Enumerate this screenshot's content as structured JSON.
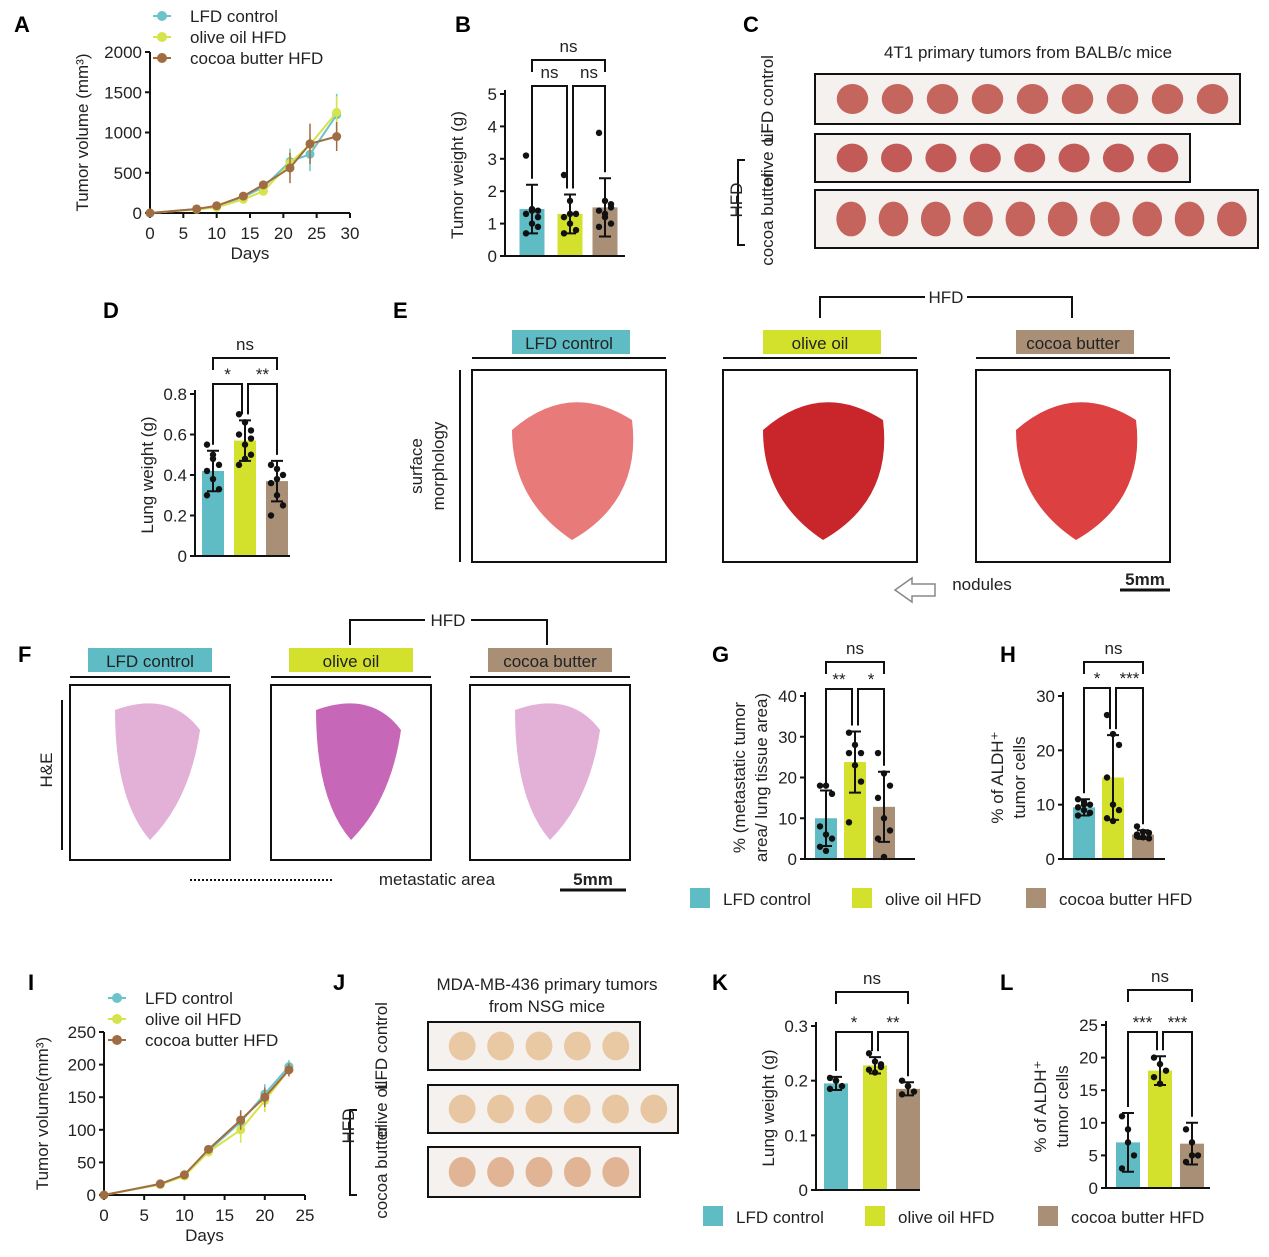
{
  "panel_labels": [
    "A",
    "B",
    "C",
    "D",
    "E",
    "F",
    "G",
    "H",
    "I",
    "J",
    "K",
    "L"
  ],
  "groups": [
    "LFD control",
    "olive oil HFD",
    "cocoa butter HFD"
  ],
  "colors": {
    "LFD control": "#5fbcc4",
    "olive oil HFD": "#d3e12c",
    "cocoa butter HFD": "#a98f76",
    "line_lfd": "#6cc3c9",
    "line_olive": "#d6e34a",
    "line_cocoa": "#a06c44"
  },
  "chart_data": [
    {
      "id": "A",
      "type": "line",
      "xlabel": "Days",
      "ylabel": "Tumor volume (mm³)",
      "xlim": [
        0,
        30
      ],
      "ylim": [
        0,
        2000
      ],
      "xticks": [
        0,
        5,
        10,
        15,
        20,
        25,
        30
      ],
      "yticks": [
        0,
        500,
        1000,
        1500,
        2000
      ],
      "legend": "top-left",
      "x": [
        0,
        7,
        10,
        14,
        17,
        21,
        24,
        28
      ],
      "series": [
        {
          "name": "LFD control",
          "values": [
            0,
            50,
            80,
            200,
            320,
            640,
            730,
            1220
          ],
          "err": [
            0,
            15,
            20,
            40,
            50,
            160,
            210,
            260
          ]
        },
        {
          "name": "olive oil HFD",
          "values": [
            0,
            45,
            70,
            170,
            270,
            620,
            850,
            1250
          ],
          "err": [
            0,
            15,
            20,
            40,
            50,
            140,
            130,
            200
          ]
        },
        {
          "name": "cocoa butter HFD",
          "values": [
            0,
            50,
            90,
            210,
            350,
            560,
            860,
            950
          ],
          "err": [
            0,
            15,
            20,
            40,
            50,
            190,
            250,
            180
          ]
        }
      ]
    },
    {
      "id": "B",
      "type": "bar",
      "ylabel": [
        "Tumor weight (g)"
      ],
      "ylim": [
        0,
        5
      ],
      "yticks": [
        0,
        1,
        2,
        3,
        4,
        5
      ],
      "categories": [
        "LFD control",
        "olive oil HFD",
        "cocoa butter HFD"
      ],
      "values": [
        1.45,
        1.3,
        1.5
      ],
      "sd": [
        0.75,
        0.6,
        0.9
      ],
      "points": [
        [
          3.1,
          1.45,
          1.4,
          1.3,
          1.0,
          0.9,
          0.7,
          1.4,
          1.2
        ],
        [
          2.5,
          1.7,
          1.3,
          1.2,
          1.0,
          0.8,
          0.7,
          1.3
        ],
        [
          3.8,
          1.7,
          1.5,
          1.4,
          1.2,
          1.0,
          0.9,
          1.3,
          1.6
        ]
      ],
      "significance": [
        {
          "pair": [
            0,
            1
          ],
          "label": "ns"
        },
        {
          "pair": [
            1,
            2
          ],
          "label": "ns"
        },
        {
          "pair": [
            0,
            2
          ],
          "label": "ns"
        }
      ]
    },
    {
      "id": "D",
      "type": "bar",
      "ylabel": [
        "Lung weight (g)"
      ],
      "ylim": [
        0,
        0.8
      ],
      "yticks": [
        0,
        0.2,
        0.4,
        0.6,
        0.8
      ],
      "categories": [
        "LFD control",
        "olive oil HFD",
        "cocoa butter HFD"
      ],
      "values": [
        0.42,
        0.57,
        0.37
      ],
      "sd": [
        0.1,
        0.1,
        0.1
      ],
      "points": [
        [
          0.55,
          0.5,
          0.45,
          0.42,
          0.38,
          0.33,
          0.3,
          0.48
        ],
        [
          0.7,
          0.66,
          0.62,
          0.6,
          0.55,
          0.5,
          0.45,
          0.48,
          0.58
        ],
        [
          0.45,
          0.43,
          0.4,
          0.36,
          0.3,
          0.25,
          0.2,
          0.38
        ]
      ],
      "significance": [
        {
          "pair": [
            0,
            1
          ],
          "label": "*"
        },
        {
          "pair": [
            1,
            2
          ],
          "label": "**"
        },
        {
          "pair": [
            0,
            2
          ],
          "label": "ns"
        }
      ]
    },
    {
      "id": "G",
      "type": "bar",
      "ylabel": [
        "% (metastatic tumor",
        "area/ lung tissue area)"
      ],
      "ylim": [
        0,
        40
      ],
      "yticks": [
        0,
        10,
        20,
        30,
        40
      ],
      "categories": [
        "LFD control",
        "olive oil HFD",
        "cocoa butter HFD"
      ],
      "values": [
        10,
        23.8,
        12.8
      ],
      "sd": [
        6.8,
        7.5,
        8.6
      ],
      "points": [
        [
          18,
          18,
          16,
          8,
          6,
          5,
          3,
          2
        ],
        [
          31,
          28,
          26,
          26,
          23,
          19,
          9
        ],
        [
          26,
          21,
          18,
          15,
          10,
          7,
          5,
          0.5
        ]
      ],
      "significance": [
        {
          "pair": [
            0,
            1
          ],
          "label": "**"
        },
        {
          "pair": [
            1,
            2
          ],
          "label": "*"
        },
        {
          "pair": [
            0,
            2
          ],
          "label": "ns"
        }
      ]
    },
    {
      "id": "H",
      "type": "bar",
      "ylabel": [
        "% of ALDH⁺",
        "tumor cells"
      ],
      "ylim": [
        0,
        30
      ],
      "yticks": [
        0,
        10,
        20,
        30
      ],
      "categories": [
        "LFD control",
        "olive oil HFD",
        "cocoa butter HFD"
      ],
      "values": [
        9.5,
        15,
        4.5
      ],
      "sd": [
        1.5,
        7.8,
        0.8
      ],
      "points": [
        [
          11,
          10.5,
          10,
          9.5,
          9,
          8.5,
          8,
          10
        ],
        [
          26.5,
          23,
          21,
          15,
          10,
          9,
          7.5,
          7
        ],
        [
          6,
          5,
          4.8,
          4.5,
          4,
          3.8,
          4.2
        ]
      ],
      "significance": [
        {
          "pair": [
            0,
            1
          ],
          "label": "*"
        },
        {
          "pair": [
            1,
            2
          ],
          "label": "***"
        },
        {
          "pair": [
            0,
            2
          ],
          "label": "ns"
        }
      ]
    },
    {
      "id": "I",
      "type": "line",
      "xlabel": "Days",
      "ylabel": "Tumor volume(mm³)",
      "xlim": [
        0,
        25
      ],
      "ylim": [
        0,
        250
      ],
      "xticks": [
        0,
        5,
        10,
        15,
        20,
        25
      ],
      "yticks": [
        0,
        50,
        100,
        150,
        200,
        250
      ],
      "legend": "top-left",
      "x": [
        0,
        7,
        10,
        13,
        17,
        20,
        23
      ],
      "series": [
        {
          "name": "LFD control",
          "values": [
            0,
            17,
            30,
            68,
            112,
            155,
            197
          ],
          "err": [
            0,
            3,
            4,
            6,
            15,
            15,
            10
          ]
        },
        {
          "name": "olive oil HFD",
          "values": [
            0,
            16,
            29,
            66,
            100,
            145,
            192
          ],
          "err": [
            0,
            3,
            4,
            6,
            20,
            18,
            10
          ]
        },
        {
          "name": "cocoa butter HFD",
          "values": [
            0,
            17,
            31,
            70,
            115,
            150,
            192
          ],
          "err": [
            0,
            3,
            4,
            6,
            15,
            15,
            10
          ]
        }
      ]
    },
    {
      "id": "K",
      "type": "bar",
      "ylabel": [
        "Lung weight (g)"
      ],
      "ylim": [
        0,
        0.3
      ],
      "yticks": [
        0,
        0.1,
        0.2,
        0.3
      ],
      "categories": [
        "LFD control",
        "olive oil HFD",
        "cocoa butter HFD"
      ],
      "values": [
        0.195,
        0.228,
        0.185
      ],
      "sd": [
        0.012,
        0.015,
        0.012
      ],
      "points": [
        [
          0.205,
          0.2,
          0.19,
          0.185,
          0.2
        ],
        [
          0.25,
          0.235,
          0.23,
          0.22,
          0.215,
          0.225
        ],
        [
          0.2,
          0.19,
          0.18,
          0.175,
          0.19
        ]
      ],
      "significance": [
        {
          "pair": [
            0,
            1
          ],
          "label": "*"
        },
        {
          "pair": [
            1,
            2
          ],
          "label": "**"
        },
        {
          "pair": [
            0,
            2
          ],
          "label": "ns"
        }
      ]
    },
    {
      "id": "L",
      "type": "bar",
      "ylabel": [
        "% of ALDH⁺",
        "tumor cells"
      ],
      "ylim": [
        0,
        25
      ],
      "yticks": [
        0,
        5,
        10,
        15,
        20,
        25
      ],
      "categories": [
        "LFD control",
        "olive oil HFD",
        "cocoa butter HFD"
      ],
      "values": [
        7,
        18,
        6.8
      ],
      "sd": [
        4.5,
        2.2,
        3.2
      ],
      "points": [
        [
          11,
          9,
          5,
          3,
          7
        ],
        [
          20,
          19,
          18,
          17,
          16
        ],
        [
          9,
          7,
          5,
          4,
          5
        ]
      ],
      "significance": [
        {
          "pair": [
            0,
            1
          ],
          "label": "***"
        },
        {
          "pair": [
            1,
            2
          ],
          "label": "***"
        },
        {
          "pair": [
            0,
            2
          ],
          "label": "ns"
        }
      ]
    }
  ],
  "images": {
    "C": {
      "title": "4T1 primary tumors from BALB/c mice",
      "rows": [
        "LFD control",
        "olive oil",
        "cocoa butter"
      ],
      "counts": [
        9,
        8,
        10
      ],
      "hfd": "HFD"
    },
    "E": {
      "headers": [
        "LFD control",
        "olive oil",
        "cocoa butter"
      ],
      "hfd": "HFD",
      "side": [
        "surface",
        "morphology"
      ],
      "arrow_label": "nodules",
      "scale": "5mm"
    },
    "F": {
      "headers": [
        "LFD control",
        "olive oil",
        "cocoa butter"
      ],
      "hfd": "HFD",
      "side": "H&E",
      "dotted_label": "metastatic area",
      "scale": "5mm"
    },
    "J": {
      "title": [
        "MDA-MB-436 primary tumors",
        "from NSG mice"
      ],
      "rows": [
        "LFD control",
        "olive oil",
        "cocoa butter"
      ],
      "counts": [
        5,
        6,
        5
      ],
      "hfd": "HFD"
    }
  }
}
